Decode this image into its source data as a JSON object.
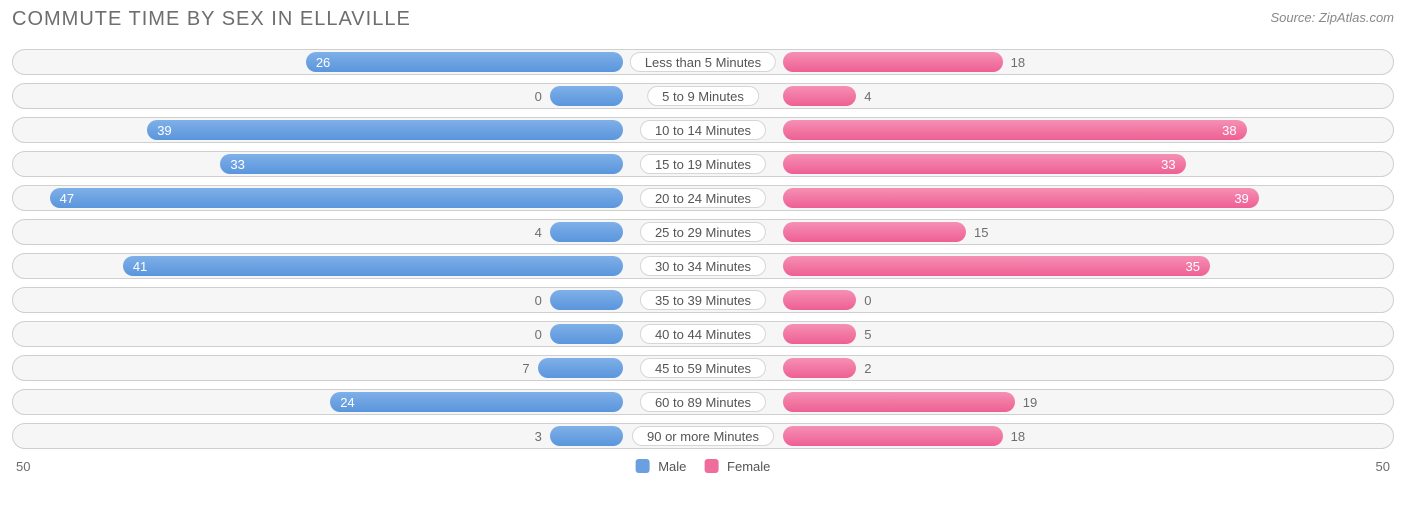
{
  "title": "COMMUTE TIME BY SEX IN ELLAVILLE",
  "source": "Source: ZipAtlas.com",
  "axis_max": 50,
  "legend": {
    "male": "Male",
    "female": "Female"
  },
  "colors": {
    "male_top": "#7fb0e8",
    "male_bottom": "#5a95dd",
    "female_top": "#f590b4",
    "female_bottom": "#ee5f93",
    "row_border": "#cfcfcf",
    "row_bg": "#f6f6f6",
    "text_muted": "#6e6e6e",
    "background": "#ffffff"
  },
  "categories": [
    {
      "label": "Less than 5 Minutes",
      "male": 26,
      "female": 18
    },
    {
      "label": "5 to 9 Minutes",
      "male": 0,
      "female": 4
    },
    {
      "label": "10 to 14 Minutes",
      "male": 39,
      "female": 38
    },
    {
      "label": "15 to 19 Minutes",
      "male": 33,
      "female": 33
    },
    {
      "label": "20 to 24 Minutes",
      "male": 47,
      "female": 39
    },
    {
      "label": "25 to 29 Minutes",
      "male": 4,
      "female": 15
    },
    {
      "label": "30 to 34 Minutes",
      "male": 41,
      "female": 35
    },
    {
      "label": "35 to 39 Minutes",
      "male": 0,
      "female": 0
    },
    {
      "label": "40 to 44 Minutes",
      "male": 0,
      "female": 5
    },
    {
      "label": "45 to 59 Minutes",
      "male": 7,
      "female": 2
    },
    {
      "label": "60 to 89 Minutes",
      "male": 24,
      "female": 19
    },
    {
      "label": "90 or more Minutes",
      "male": 3,
      "female": 18
    }
  ]
}
